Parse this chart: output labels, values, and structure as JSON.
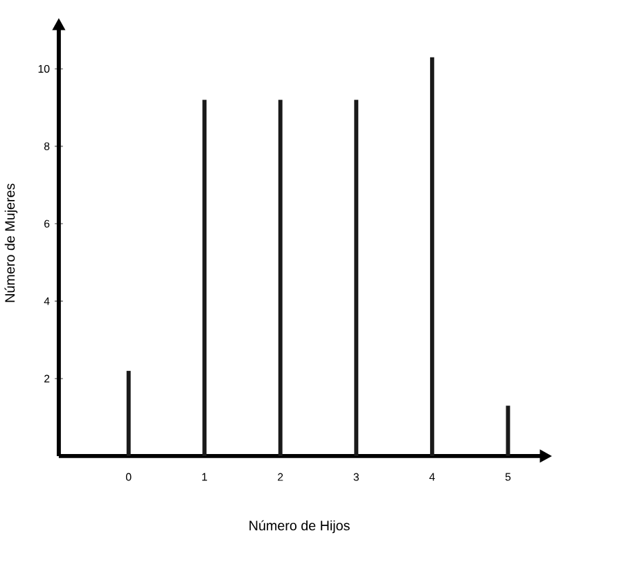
{
  "chart_data": {
    "type": "bar",
    "xlabel": "Número de Hijos",
    "ylabel": "Número de Mujeres",
    "categories": [
      "0",
      "1",
      "2",
      "3",
      "4",
      "5"
    ],
    "values": [
      2.2,
      9.2,
      9.2,
      9.2,
      10.3,
      1.3
    ],
    "color": "#1a1a1a",
    "ylim": [
      0,
      11
    ],
    "yticks": [
      2,
      4,
      6,
      8,
      10
    ]
  }
}
